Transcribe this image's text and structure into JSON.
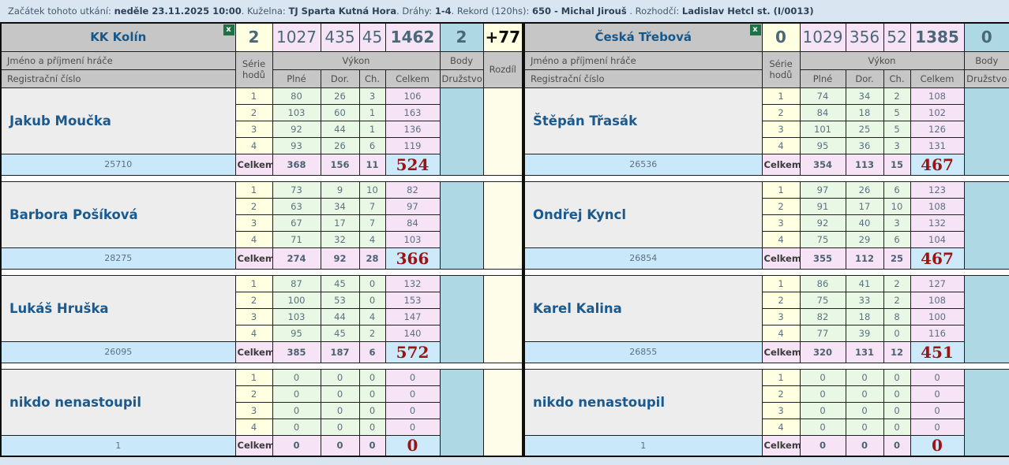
{
  "info_bar": {
    "segments": [
      {
        "text": "Začátek tohoto utkání: ",
        "bold": false
      },
      {
        "text": "neděle 23.11.2025 10:00",
        "bold": true
      },
      {
        "text": ". Kuželna: ",
        "bold": false
      },
      {
        "text": "TJ Sparta Kutná Hora",
        "bold": true
      },
      {
        "text": ". Dráhy: ",
        "bold": false
      },
      {
        "text": "1-4",
        "bold": true
      },
      {
        "text": ". Rekord (120hs): ",
        "bold": false
      },
      {
        "text": "650 - Michal Jirouš",
        "bold": true
      },
      {
        "text": " . Rozhodčí: ",
        "bold": false
      },
      {
        "text": "Ladislav Hetcl st. (I/0013)",
        "bold": true
      }
    ]
  },
  "labels": {
    "player_name_header": "Jméno a příjmení hráče",
    "reg_number_header": "Registrační číslo",
    "series_header": "Série hodů",
    "performance_header": "Výkon",
    "full_header": "Plné",
    "clear_header": "Dor.",
    "faults_header": "Ch.",
    "total_header": "Celkem",
    "points_header": "Body",
    "team_points_header": "Družstvo",
    "diff_header": "Rozdíl",
    "total_row_label": "Celkem",
    "excel_icon_glyph": "x"
  },
  "teams": [
    {
      "name": "KK Kolín",
      "match_points": "2",
      "full": "1027",
      "clear": "435",
      "faults": "45",
      "total": "1462",
      "team_points": "2",
      "diff": "+77",
      "players": [
        {
          "name": "Jakub Moučka",
          "reg": "25710",
          "rows": [
            [
              "1",
              "80",
              "26",
              "3",
              "106"
            ],
            [
              "2",
              "103",
              "60",
              "1",
              "163"
            ],
            [
              "3",
              "92",
              "44",
              "1",
              "136"
            ],
            [
              "4",
              "93",
              "26",
              "6",
              "119"
            ]
          ],
          "totals": [
            "368",
            "156",
            "11",
            "524"
          ]
        },
        {
          "name": "Barbora Pošíková",
          "reg": "28275",
          "rows": [
            [
              "1",
              "73",
              "9",
              "10",
              "82"
            ],
            [
              "2",
              "63",
              "34",
              "7",
              "97"
            ],
            [
              "3",
              "67",
              "17",
              "7",
              "84"
            ],
            [
              "4",
              "71",
              "32",
              "4",
              "103"
            ]
          ],
          "totals": [
            "274",
            "92",
            "28",
            "366"
          ]
        },
        {
          "name": "Lukáš Hruška",
          "reg": "26095",
          "rows": [
            [
              "1",
              "87",
              "45",
              "0",
              "132"
            ],
            [
              "2",
              "100",
              "53",
              "0",
              "153"
            ],
            [
              "3",
              "103",
              "44",
              "4",
              "147"
            ],
            [
              "4",
              "95",
              "45",
              "2",
              "140"
            ]
          ],
          "totals": [
            "385",
            "187",
            "6",
            "572"
          ]
        },
        {
          "name": "nikdo nenastoupil",
          "reg": "1",
          "rows": [
            [
              "1",
              "0",
              "0",
              "0",
              "0"
            ],
            [
              "2",
              "0",
              "0",
              "0",
              "0"
            ],
            [
              "3",
              "0",
              "0",
              "0",
              "0"
            ],
            [
              "4",
              "0",
              "0",
              "0",
              "0"
            ]
          ],
          "totals": [
            "0",
            "0",
            "0",
            "0"
          ]
        }
      ]
    },
    {
      "name": "Česká Třebová",
      "match_points": "0",
      "full": "1029",
      "clear": "356",
      "faults": "52",
      "total": "1385",
      "team_points": "0",
      "diff": "",
      "players": [
        {
          "name": "Štěpán Třasák",
          "reg": "26536",
          "rows": [
            [
              "1",
              "74",
              "34",
              "2",
              "108"
            ],
            [
              "2",
              "84",
              "18",
              "5",
              "102"
            ],
            [
              "3",
              "101",
              "25",
              "5",
              "126"
            ],
            [
              "4",
              "95",
              "36",
              "3",
              "131"
            ]
          ],
          "totals": [
            "354",
            "113",
            "15",
            "467"
          ]
        },
        {
          "name": "Ondřej Kyncl",
          "reg": "26854",
          "rows": [
            [
              "1",
              "97",
              "26",
              "6",
              "123"
            ],
            [
              "2",
              "91",
              "17",
              "10",
              "108"
            ],
            [
              "3",
              "92",
              "40",
              "3",
              "132"
            ],
            [
              "4",
              "75",
              "29",
              "6",
              "104"
            ]
          ],
          "totals": [
            "355",
            "112",
            "25",
            "467"
          ]
        },
        {
          "name": "Karel Kalina",
          "reg": "26855",
          "rows": [
            [
              "1",
              "86",
              "41",
              "2",
              "127"
            ],
            [
              "2",
              "75",
              "33",
              "2",
              "108"
            ],
            [
              "3",
              "82",
              "18",
              "8",
              "100"
            ],
            [
              "4",
              "77",
              "39",
              "0",
              "116"
            ]
          ],
          "totals": [
            "320",
            "131",
            "12",
            "451"
          ]
        },
        {
          "name": "nikdo nenastoupil",
          "reg": "1",
          "rows": [
            [
              "1",
              "0",
              "0",
              "0",
              "0"
            ],
            [
              "2",
              "0",
              "0",
              "0",
              "0"
            ],
            [
              "3",
              "0",
              "0",
              "0",
              "0"
            ],
            [
              "4",
              "0",
              "0",
              "0",
              "0"
            ]
          ],
          "totals": [
            "0",
            "0",
            "0",
            "0"
          ]
        }
      ]
    }
  ],
  "colors": {
    "page_background": "#d9e6f2",
    "header_gray": "#c6c6c6",
    "series_cream": "#ffffe1",
    "pins_green": "#e9f8e5",
    "total_lavender": "#f6e3f6",
    "reg_blue": "#c9e8fa",
    "team_points_teal": "#aed8e4",
    "diff_cream": "#fdfdea",
    "team_name_blue": "#17588c",
    "player_total_red": "#9b1313",
    "excel_green": "#1e7145"
  }
}
